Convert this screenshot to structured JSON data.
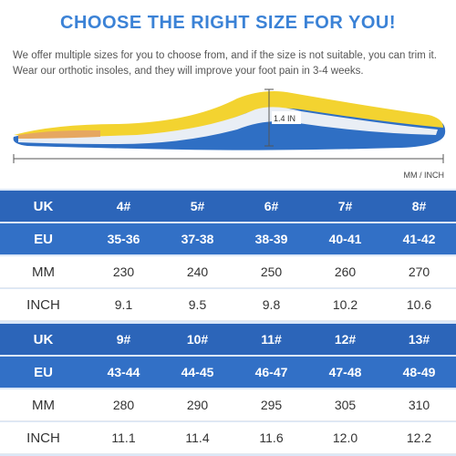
{
  "header": {
    "title": "CHOOSE THE RIGHT SIZE FOR YOU!",
    "description": "We offer multiple sizes for you to choose from, and if the size is not suitable, you can trim it. Wear our orthotic insoles, and they will improve your foot pain in 3-4 weeks."
  },
  "illustration": {
    "height_label": "1.4 IN",
    "unit_label": "MM / INCH"
  },
  "table": {
    "blocks": [
      {
        "rows": [
          [
            "UK",
            "4#",
            "5#",
            "6#",
            "7#",
            "8#"
          ],
          [
            "EU",
            "35-36",
            "37-38",
            "38-39",
            "40-41",
            "41-42"
          ],
          [
            "MM",
            "230",
            "240",
            "250",
            "260",
            "270"
          ],
          [
            "INCH",
            "9.1",
            "9.5",
            "9.8",
            "10.2",
            "10.6"
          ]
        ]
      },
      {
        "rows": [
          [
            "UK",
            "9#",
            "10#",
            "11#",
            "12#",
            "13#"
          ],
          [
            "EU",
            "43-44",
            "44-45",
            "46-47",
            "47-48",
            "48-49"
          ],
          [
            "MM",
            "280",
            "290",
            "295",
            "305",
            "310"
          ],
          [
            "INCH",
            "11.1",
            "11.4",
            "11.6",
            "12.0",
            "12.2"
          ]
        ]
      }
    ]
  }
}
